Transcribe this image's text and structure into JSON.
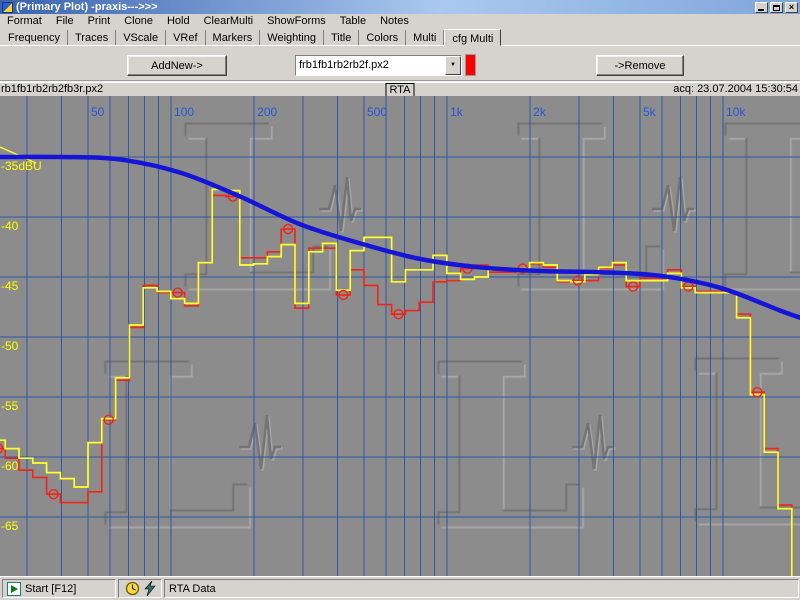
{
  "window": {
    "title": "(Primary Plot) -praxis--->>>",
    "controls": {
      "minimize": "minimize",
      "restore": "restore",
      "close": "close"
    }
  },
  "menu": {
    "items": [
      "Format",
      "File",
      "Print",
      "Clone",
      "Hold",
      "ClearMulti",
      "ShowForms",
      "Table",
      "Notes"
    ]
  },
  "tabs": {
    "items": [
      "Frequency",
      "Traces",
      "VScale",
      "VRef",
      "Markers",
      "Weighting",
      "Title",
      "Colors",
      "Multi",
      "cfg Multi"
    ],
    "active": "cfg Multi"
  },
  "toolbar": {
    "add_button": "AddNew->",
    "dropdown_value": "frb1fb1rb2rb2f.px2",
    "trace_color_indicator": "#ff0000",
    "remove_button": "->Remove"
  },
  "plot_header": {
    "left": "rb1fb1rb2rb2fb3r.px2",
    "center": "RTA",
    "right": "acq: 23.07.2004 15:30:54"
  },
  "statusbar": {
    "start_label": "Start [F12]",
    "icons": [
      "play-icon",
      "clock-icon",
      "lightning-icon"
    ],
    "rta_label": "RTA Data"
  },
  "watermark": {
    "glyph": "L"
  },
  "chart_data": {
    "type": "line",
    "title": "RTA",
    "x_axis": {
      "scale": "log",
      "unit": "Hz",
      "ticks": [
        {
          "hz": 50,
          "label": "50"
        },
        {
          "hz": 100,
          "label": "100"
        },
        {
          "hz": 200,
          "label": "200"
        },
        {
          "hz": 500,
          "label": "500"
        },
        {
          "hz": 1000,
          "label": "1k"
        },
        {
          "hz": 2000,
          "label": "2k"
        },
        {
          "hz": 5000,
          "label": "5k"
        },
        {
          "hz": 10000,
          "label": "10k"
        }
      ],
      "gridlines_hz": [
        30,
        40,
        50,
        60,
        70,
        80,
        90,
        100,
        200,
        300,
        400,
        500,
        600,
        700,
        800,
        900,
        1000,
        2000,
        3000,
        4000,
        5000,
        6000,
        7000,
        8000,
        9000,
        10000
      ],
      "visible_range_hz": [
        24,
        19400
      ]
    },
    "y_axis": {
      "unit": "dBU",
      "ticks": [
        {
          "db": -35,
          "label": "-35dBU"
        },
        {
          "db": -40,
          "label": "-40"
        },
        {
          "db": -45,
          "label": "-45"
        },
        {
          "db": -50,
          "label": "-50"
        },
        {
          "db": -55,
          "label": "-55"
        },
        {
          "db": -60,
          "label": "-60"
        },
        {
          "db": -65,
          "label": "-65"
        }
      ],
      "visible_range_db": [
        -30,
        -70
      ]
    },
    "colors": {
      "background": "#8c8c8c",
      "grid": "#2e57a4",
      "x_labels": "#2456d8",
      "y_labels": "#ffff00"
    },
    "rta_bands": {
      "reference_hz": 50,
      "first_band_index": -7,
      "bands_per_decade": 20
    },
    "series": [
      {
        "name": "rta-trace-yellow",
        "style": "step",
        "color": "#ffff2e",
        "values_db": [
          -58.6,
          -59.3,
          -60.1,
          -60.5,
          -61.3,
          -61.8,
          -62.5,
          -58.8,
          -56.8,
          -53.4,
          -49.0,
          -45.9,
          -46.2,
          -46.8,
          -47.2,
          -43.8,
          -37.7,
          -37.8,
          -44.0,
          -43.9,
          -43.3,
          -42.3,
          -47.2,
          -42.9,
          -42.2,
          -46.1,
          -42.8,
          -41.7,
          -41.7,
          -45.4,
          -44.4,
          -44.4,
          -43.2,
          -44.7,
          -45.2,
          -45.0,
          -44.4,
          -44.4,
          -44.3,
          -43.8,
          -44.0,
          -45.3,
          -45.4,
          -44.8,
          -44.2,
          -43.8,
          -45.3,
          -45.3,
          -45.3,
          -44.7,
          -45.9,
          -46.3,
          -46.3,
          -46.3,
          -48.4,
          -54.8,
          -59.6,
          -64.3,
          -70.0
        ]
      },
      {
        "name": "rta-trace-red",
        "style": "step",
        "color": "#f22318",
        "values_db": [
          -59.3,
          -60.1,
          -61.1,
          -61.7,
          -63.1,
          -63.8,
          -63.8,
          -62.9,
          -56.9,
          -53.6,
          -49.2,
          -45.7,
          -46.3,
          -46.3,
          -47.4,
          -43.8,
          -38.2,
          -38.3,
          -43.4,
          -43.4,
          -42.9,
          -41.0,
          -47.6,
          -42.6,
          -42.6,
          -46.5,
          -44.4,
          -45.7,
          -47.3,
          -48.1,
          -47.8,
          -47.1,
          -45.4,
          -45.3,
          -44.3,
          -44.0,
          -44.6,
          -44.6,
          -44.3,
          -43.9,
          -44.2,
          -45.4,
          -45.3,
          -45.3,
          -44.3,
          -44.0,
          -45.8,
          -45.1,
          -45.1,
          -44.4,
          -45.8,
          -46.2,
          -46.2,
          -46.3,
          -48.1,
          -54.6,
          -59.3,
          -64.0,
          -70.0
        ],
        "marker_band_indices": [
          0,
          4,
          8,
          13,
          17,
          21,
          25,
          29,
          34,
          38,
          42,
          46,
          50,
          55
        ]
      },
      {
        "name": "target-curve-blue",
        "style": "smooth",
        "color": "#1515d8",
        "points": [
          {
            "hz": 24,
            "db": -35.0
          },
          {
            "hz": 40,
            "db": -35.0
          },
          {
            "hz": 65,
            "db": -35.2
          },
          {
            "hz": 108,
            "db": -36.3
          },
          {
            "hz": 178,
            "db": -38.3
          },
          {
            "hz": 293,
            "db": -40.6
          },
          {
            "hz": 484,
            "db": -42.2
          },
          {
            "hz": 800,
            "db": -43.5
          },
          {
            "hz": 1320,
            "db": -44.2
          },
          {
            "hz": 2175,
            "db": -44.5
          },
          {
            "hz": 3590,
            "db": -44.6
          },
          {
            "hz": 5920,
            "db": -44.9
          },
          {
            "hz": 9770,
            "db": -45.9
          },
          {
            "hz": 16100,
            "db": -47.8
          },
          {
            "hz": 19100,
            "db": -48.4
          }
        ]
      }
    ]
  }
}
